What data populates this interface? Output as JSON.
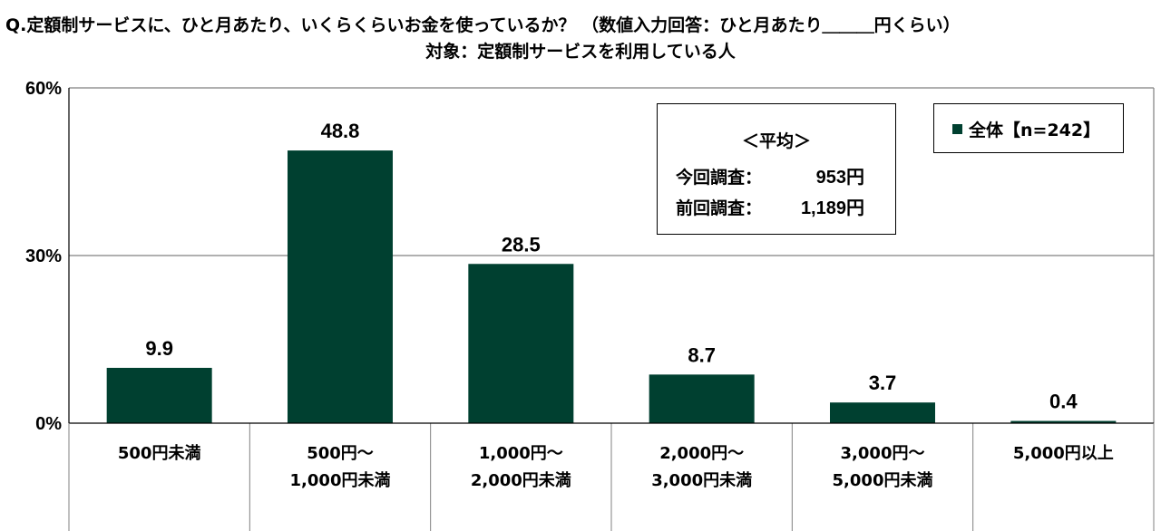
{
  "title": {
    "line1": "Q.定額制サービスに、ひと月あたり、いくらくらいお金を使っているか？ （数値入力回答：ひと月あたり＿＿＿円くらい）",
    "line2": "対象：定額制サービスを利用している人"
  },
  "average_box": {
    "heading": "＜平均＞",
    "rows": [
      {
        "label": "今回調査：",
        "value": "953円"
      },
      {
        "label": "前回調査：",
        "value": "1,189円"
      }
    ]
  },
  "colors": {
    "bar": "#004030",
    "grid": "#808080",
    "axis": "#000000"
  },
  "chart_data": {
    "type": "bar",
    "title": "",
    "xlabel": "",
    "ylabel": "",
    "ylim": [
      0,
      60
    ],
    "yticks": [
      "0%",
      "30%",
      "60%"
    ],
    "ytick_values": [
      0,
      30,
      60
    ],
    "grid": true,
    "legend_position": "top-right",
    "categories": [
      [
        "500円未満"
      ],
      [
        "500円～",
        "1,000円未満"
      ],
      [
        "1,000円～",
        "2,000円未満"
      ],
      [
        "2,000円～",
        "3,000円未満"
      ],
      [
        "3,000円～",
        "5,000円未満"
      ],
      [
        "5,000円以上"
      ]
    ],
    "series": [
      {
        "name": "全体【n=242】",
        "values": [
          9.9,
          48.8,
          28.5,
          8.7,
          3.7,
          0.4
        ],
        "labels": [
          "9.9",
          "48.8",
          "28.5",
          "8.7",
          "3.7",
          "0.4"
        ]
      }
    ]
  }
}
